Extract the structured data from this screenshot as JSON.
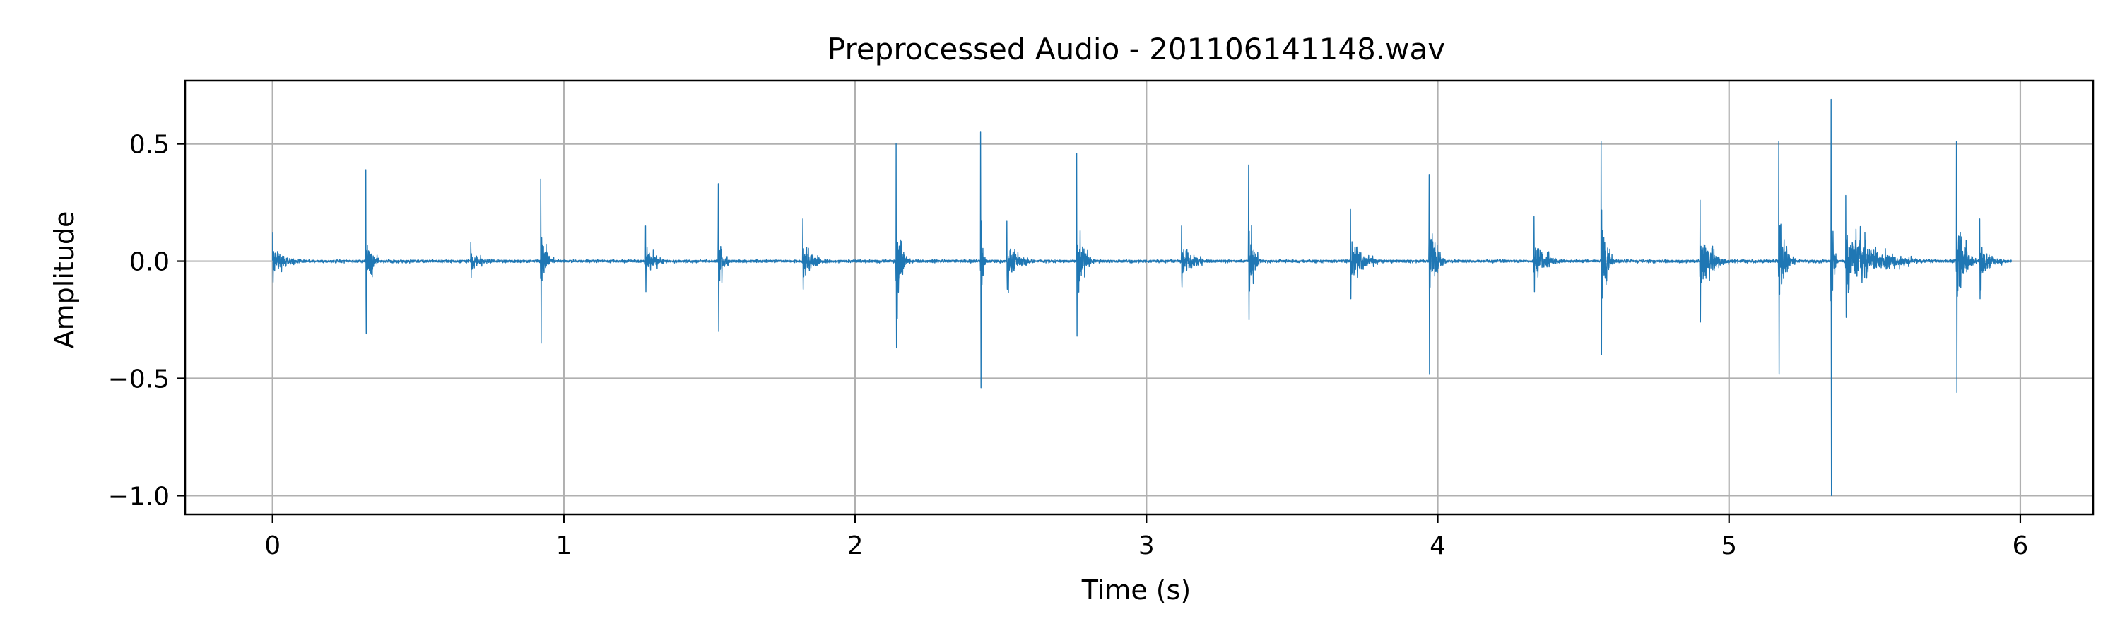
{
  "chart_data": {
    "type": "line",
    "title": "Preprocessed Audio - 201106141148.wav",
    "xlabel": "Time (s)",
    "ylabel": "Amplitude",
    "xlim": [
      -0.3,
      6.25
    ],
    "ylim": [
      -1.08,
      0.77
    ],
    "grid": true,
    "x_ticks": [
      0,
      1,
      2,
      3,
      4,
      5,
      6
    ],
    "x_tick_labels": [
      "0",
      "1",
      "2",
      "3",
      "4",
      "5",
      "6"
    ],
    "y_ticks": [
      0.5,
      0.0,
      -0.5,
      -1.0
    ],
    "y_tick_labels": [
      "0.5",
      "0.0",
      "−0.5",
      "−1.0"
    ],
    "colors": {
      "series": "#1f77b4",
      "grid": "#b0b0b0",
      "axes": "#000000"
    },
    "series": [
      {
        "x_start": 0.0,
        "x_end": 5.97,
        "baseline_noise": 0.008,
        "bursts": [
          {
            "t": 0.0,
            "dur": 0.15,
            "peak": 0.12,
            "trough": -0.09
          },
          {
            "t": 0.32,
            "dur": 0.05,
            "peak": 0.39,
            "trough": -0.31
          },
          {
            "t": 0.68,
            "dur": 0.12,
            "peak": 0.08,
            "trough": -0.07
          },
          {
            "t": 0.92,
            "dur": 0.05,
            "peak": 0.35,
            "trough": -0.35
          },
          {
            "t": 1.28,
            "dur": 0.1,
            "peak": 0.15,
            "trough": -0.13
          },
          {
            "t": 1.53,
            "dur": 0.04,
            "peak": 0.33,
            "trough": -0.3
          },
          {
            "t": 1.82,
            "dur": 0.1,
            "peak": 0.18,
            "trough": -0.12
          },
          {
            "t": 2.14,
            "dur": 0.05,
            "peak": 0.5,
            "trough": -0.37
          },
          {
            "t": 2.43,
            "dur": 0.02,
            "peak": 0.55,
            "trough": -0.54
          },
          {
            "t": 2.52,
            "dur": 0.12,
            "peak": 0.17,
            "trough": -0.12
          },
          {
            "t": 2.76,
            "dur": 0.06,
            "peak": 0.46,
            "trough": -0.32
          },
          {
            "t": 3.12,
            "dur": 0.12,
            "peak": 0.15,
            "trough": -0.11
          },
          {
            "t": 3.35,
            "dur": 0.05,
            "peak": 0.41,
            "trough": -0.25
          },
          {
            "t": 3.7,
            "dur": 0.12,
            "peak": 0.22,
            "trough": -0.16
          },
          {
            "t": 3.97,
            "dur": 0.06,
            "peak": 0.37,
            "trough": -0.48
          },
          {
            "t": 4.33,
            "dur": 0.12,
            "peak": 0.19,
            "trough": -0.13
          },
          {
            "t": 4.56,
            "dur": 0.05,
            "peak": 0.51,
            "trough": -0.4
          },
          {
            "t": 4.9,
            "dur": 0.12,
            "peak": 0.26,
            "trough": -0.26
          },
          {
            "t": 5.17,
            "dur": 0.06,
            "peak": 0.51,
            "trough": -0.48
          },
          {
            "t": 5.35,
            "dur": 0.02,
            "peak": 0.69,
            "trough": -1.0
          },
          {
            "t": 5.4,
            "dur": 0.3,
            "peak": 0.28,
            "trough": -0.24
          },
          {
            "t": 5.78,
            "dur": 0.07,
            "peak": 0.51,
            "trough": -0.56
          },
          {
            "t": 5.86,
            "dur": 0.11,
            "peak": 0.18,
            "trough": -0.16
          }
        ]
      }
    ]
  }
}
